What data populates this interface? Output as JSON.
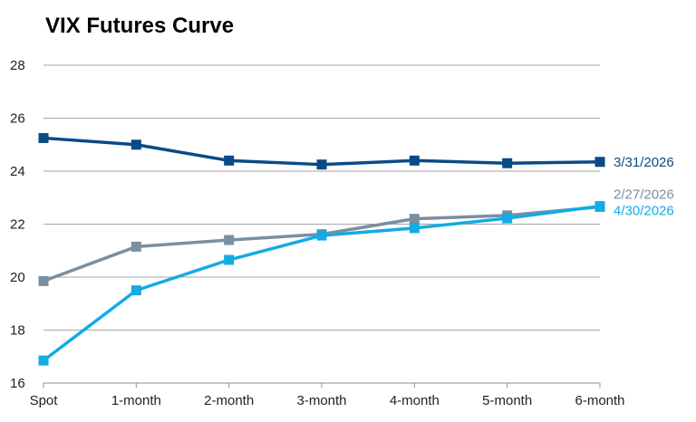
{
  "chart_data": {
    "type": "line",
    "title": "VIX Futures Curve",
    "xlabel": "",
    "ylabel": "",
    "categories": [
      "Spot",
      "1-month",
      "2-month",
      "3-month",
      "4-month",
      "5-month",
      "6-month"
    ],
    "ylim": [
      16,
      28
    ],
    "yticks": [
      16,
      18,
      20,
      22,
      24,
      26,
      28
    ],
    "grid": true,
    "legend": "inline labels at right end of each series",
    "series": [
      {
        "name": "3/31/2026",
        "color": "#0b4a87",
        "marker": "square",
        "values": [
          25.25,
          25.0,
          24.4,
          24.25,
          24.4,
          24.3,
          24.35
        ]
      },
      {
        "name": "2/27/2026",
        "color": "#7a8fa0",
        "marker": "square",
        "values": [
          19.85,
          21.15,
          21.4,
          21.62,
          22.2,
          22.33,
          22.65
        ]
      },
      {
        "name": "4/30/2026",
        "color": "#12abe6",
        "marker": "square",
        "values": [
          16.85,
          19.5,
          20.65,
          21.57,
          21.85,
          22.22,
          22.68
        ]
      }
    ]
  }
}
